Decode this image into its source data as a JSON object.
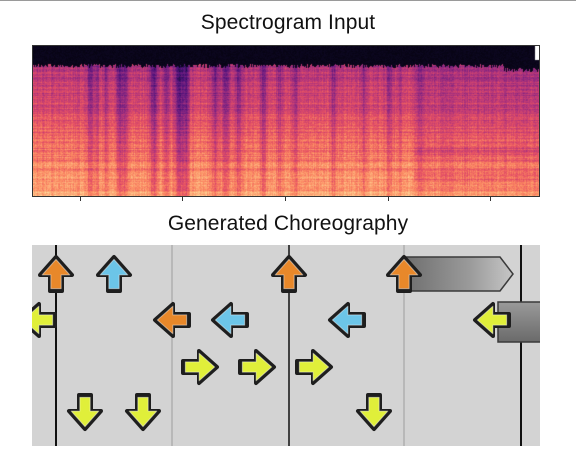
{
  "figure": {
    "spectrogram_title": "Spectrogram Input",
    "choreography_title": "Generated Choreography"
  },
  "colors": {
    "up_arrow_primary": "#e8882a",
    "up_arrow_secondary": "#6cc5e8",
    "left_arrow_primary": "#e8882a",
    "left_arrow_secondary": "#6cc5e8",
    "right_arrow": "#e0ef3a",
    "down_arrow": "#e0ef3a",
    "hold_bar": "#8a8a8a",
    "lane_background": "#d3d3d3",
    "spectrogram_palette": "magma"
  },
  "choreography": {
    "lanes": [
      "left",
      "down",
      "up",
      "right"
    ],
    "notes": [
      {
        "direction": "up",
        "color": "orange"
      },
      {
        "direction": "up",
        "color": "blue"
      },
      {
        "direction": "left",
        "color": "orange"
      },
      {
        "direction": "left",
        "color": "blue"
      },
      {
        "direction": "right",
        "color": "yellow"
      },
      {
        "direction": "right",
        "color": "yellow"
      },
      {
        "direction": "down",
        "color": "yellow"
      },
      {
        "direction": "down",
        "color": "yellow"
      },
      {
        "direction": "up",
        "color": "orange"
      },
      {
        "direction": "left",
        "color": "blue"
      },
      {
        "direction": "right",
        "color": "yellow"
      },
      {
        "direction": "down",
        "color": "yellow"
      },
      {
        "direction": "up",
        "color": "orange",
        "hold": true
      },
      {
        "direction": "left",
        "color": "yellow",
        "hold": true
      },
      {
        "direction": "left",
        "color": "yellow",
        "partial": true
      }
    ]
  }
}
